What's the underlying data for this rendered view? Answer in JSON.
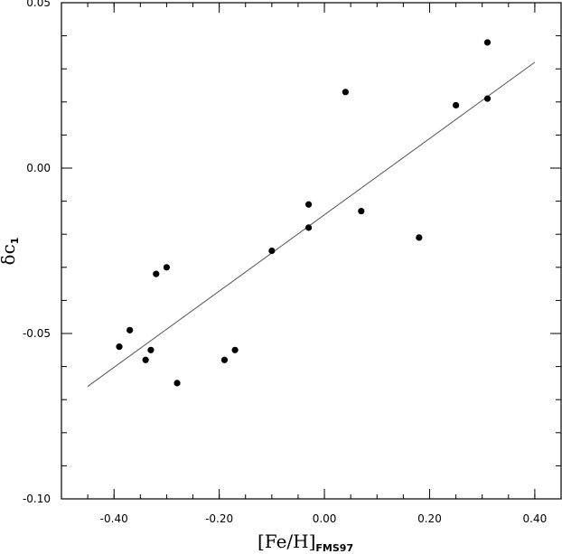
{
  "chart_data": {
    "type": "scatter",
    "title": "",
    "xlabel": {
      "main": "[Fe/H]",
      "sub": "FMS97"
    },
    "ylabel": {
      "main": "δc",
      "sub": "1"
    },
    "xlim": [
      -0.5,
      0.45
    ],
    "ylim": [
      -0.1,
      0.05
    ],
    "x_ticks": [
      {
        "value": -0.4,
        "label": "-0.40"
      },
      {
        "value": -0.2,
        "label": "-0.20"
      },
      {
        "value": 0.0,
        "label": "0.00"
      },
      {
        "value": 0.2,
        "label": "0.20"
      },
      {
        "value": 0.4,
        "label": "0.40"
      }
    ],
    "y_ticks": [
      {
        "value": -0.1,
        "label": "-0.10"
      },
      {
        "value": -0.05,
        "label": "-0.05"
      },
      {
        "value": 0.0,
        "label": "0.00"
      },
      {
        "value": 0.05,
        "label": "0.05"
      }
    ],
    "x_minor_step": 0.05,
    "y_minor_step": 0.01,
    "grid": false,
    "points": [
      {
        "x": -0.39,
        "y": -0.054
      },
      {
        "x": -0.37,
        "y": -0.049
      },
      {
        "x": -0.34,
        "y": -0.058
      },
      {
        "x": -0.33,
        "y": -0.055
      },
      {
        "x": -0.32,
        "y": -0.032
      },
      {
        "x": -0.3,
        "y": -0.03
      },
      {
        "x": -0.28,
        "y": -0.065
      },
      {
        "x": -0.19,
        "y": -0.058
      },
      {
        "x": -0.17,
        "y": -0.055
      },
      {
        "x": -0.1,
        "y": -0.025
      },
      {
        "x": -0.03,
        "y": -0.011
      },
      {
        "x": -0.03,
        "y": -0.018
      },
      {
        "x": 0.04,
        "y": 0.023
      },
      {
        "x": 0.07,
        "y": -0.013
      },
      {
        "x": 0.18,
        "y": -0.021
      },
      {
        "x": 0.25,
        "y": 0.019
      },
      {
        "x": 0.31,
        "y": 0.038
      },
      {
        "x": 0.31,
        "y": 0.021
      }
    ],
    "fit_line": {
      "x": [
        -0.45,
        0.4
      ],
      "y": [
        -0.066,
        0.032
      ]
    },
    "marker_color": "#000000",
    "line_color": "#555555"
  }
}
